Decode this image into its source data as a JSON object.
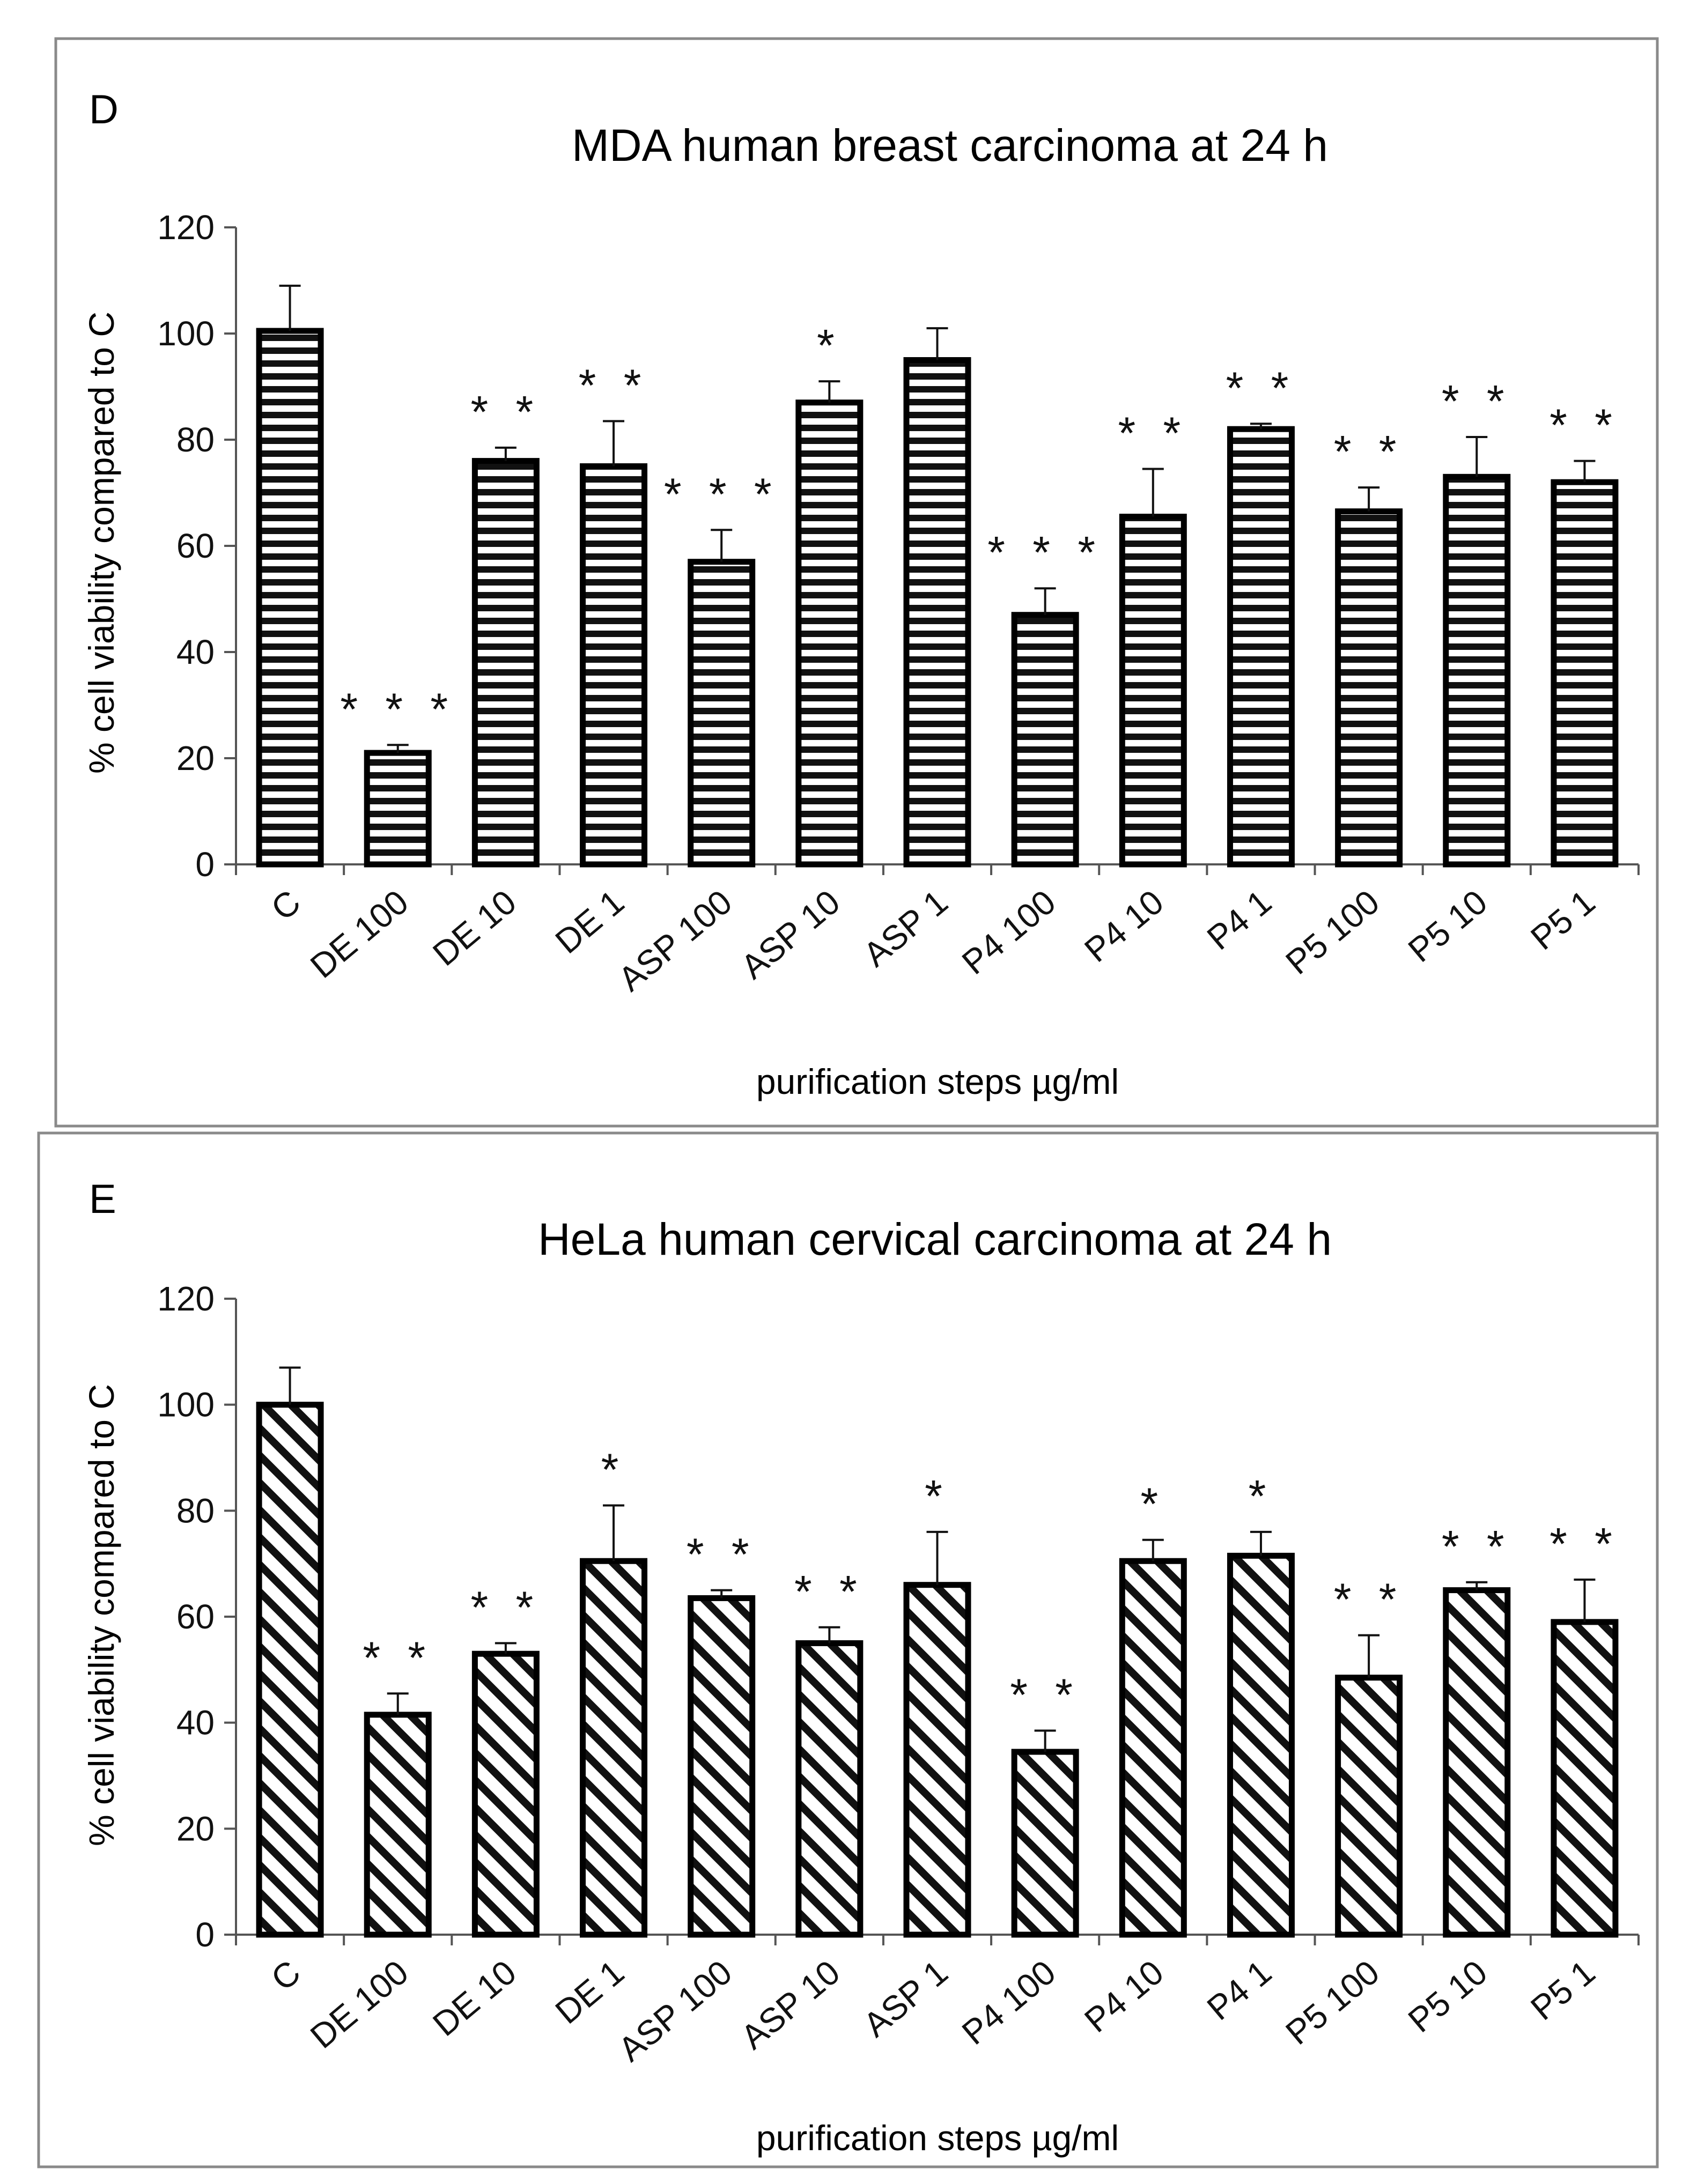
{
  "chart_data": [
    {
      "type": "bar",
      "panel_label": "D",
      "title": "MDA human breast carcinoma at 24 h",
      "xlabel": "purification steps µg/ml",
      "ylabel": "% cell viability compared to C",
      "ylim": [
        0,
        120
      ],
      "yticks": [
        0,
        20,
        40,
        60,
        80,
        100,
        120
      ],
      "pattern": "horizontal-stripes",
      "categories": [
        "C",
        "DE 100",
        "DE 10",
        "DE 1",
        "ASP 100",
        "ASP 10",
        "ASP 1",
        "P4 100",
        "P4 10",
        "P4 1",
        "P5 100",
        "P5 10",
        "P5 1"
      ],
      "values": [
        100.5,
        21,
        76,
        75,
        57,
        87,
        95,
        47,
        65.5,
        82,
        66.5,
        73,
        72
      ],
      "errors": [
        8.5,
        1.5,
        2.5,
        8.5,
        6,
        4,
        6,
        5,
        9,
        1,
        4.5,
        7.5,
        4
      ],
      "significance": [
        "",
        "***",
        "**",
        "**",
        "***",
        "*",
        "",
        "***",
        "**",
        "**",
        "**",
        "**",
        "**"
      ]
    },
    {
      "type": "bar",
      "panel_label": "E",
      "title": "HeLa human cervical carcinoma at 24 h",
      "xlabel": "purification steps µg/ml",
      "ylabel": "% cell viability compared to C",
      "ylim": [
        0,
        120
      ],
      "yticks": [
        0,
        20,
        40,
        60,
        80,
        100,
        120
      ],
      "pattern": "diagonal-stripes",
      "categories": [
        "C",
        "DE 100",
        "DE 10",
        "DE 1",
        "ASP 100",
        "ASP 10",
        "ASP 1",
        "P4 100",
        "P4 10",
        "P4 1",
        "P5 100",
        "P5 10",
        "P5 1"
      ],
      "values": [
        100,
        41.5,
        53,
        70.5,
        63.5,
        55,
        66,
        34.5,
        70.5,
        71.5,
        48.5,
        65,
        59
      ],
      "errors": [
        7,
        4,
        2,
        10.5,
        1.5,
        3,
        10,
        4,
        4,
        4.5,
        8,
        1.5,
        8
      ],
      "significance": [
        "",
        "**",
        "**",
        "*",
        "**",
        "**",
        "*",
        "**",
        "*",
        "*",
        "**",
        "**",
        "**"
      ]
    }
  ]
}
